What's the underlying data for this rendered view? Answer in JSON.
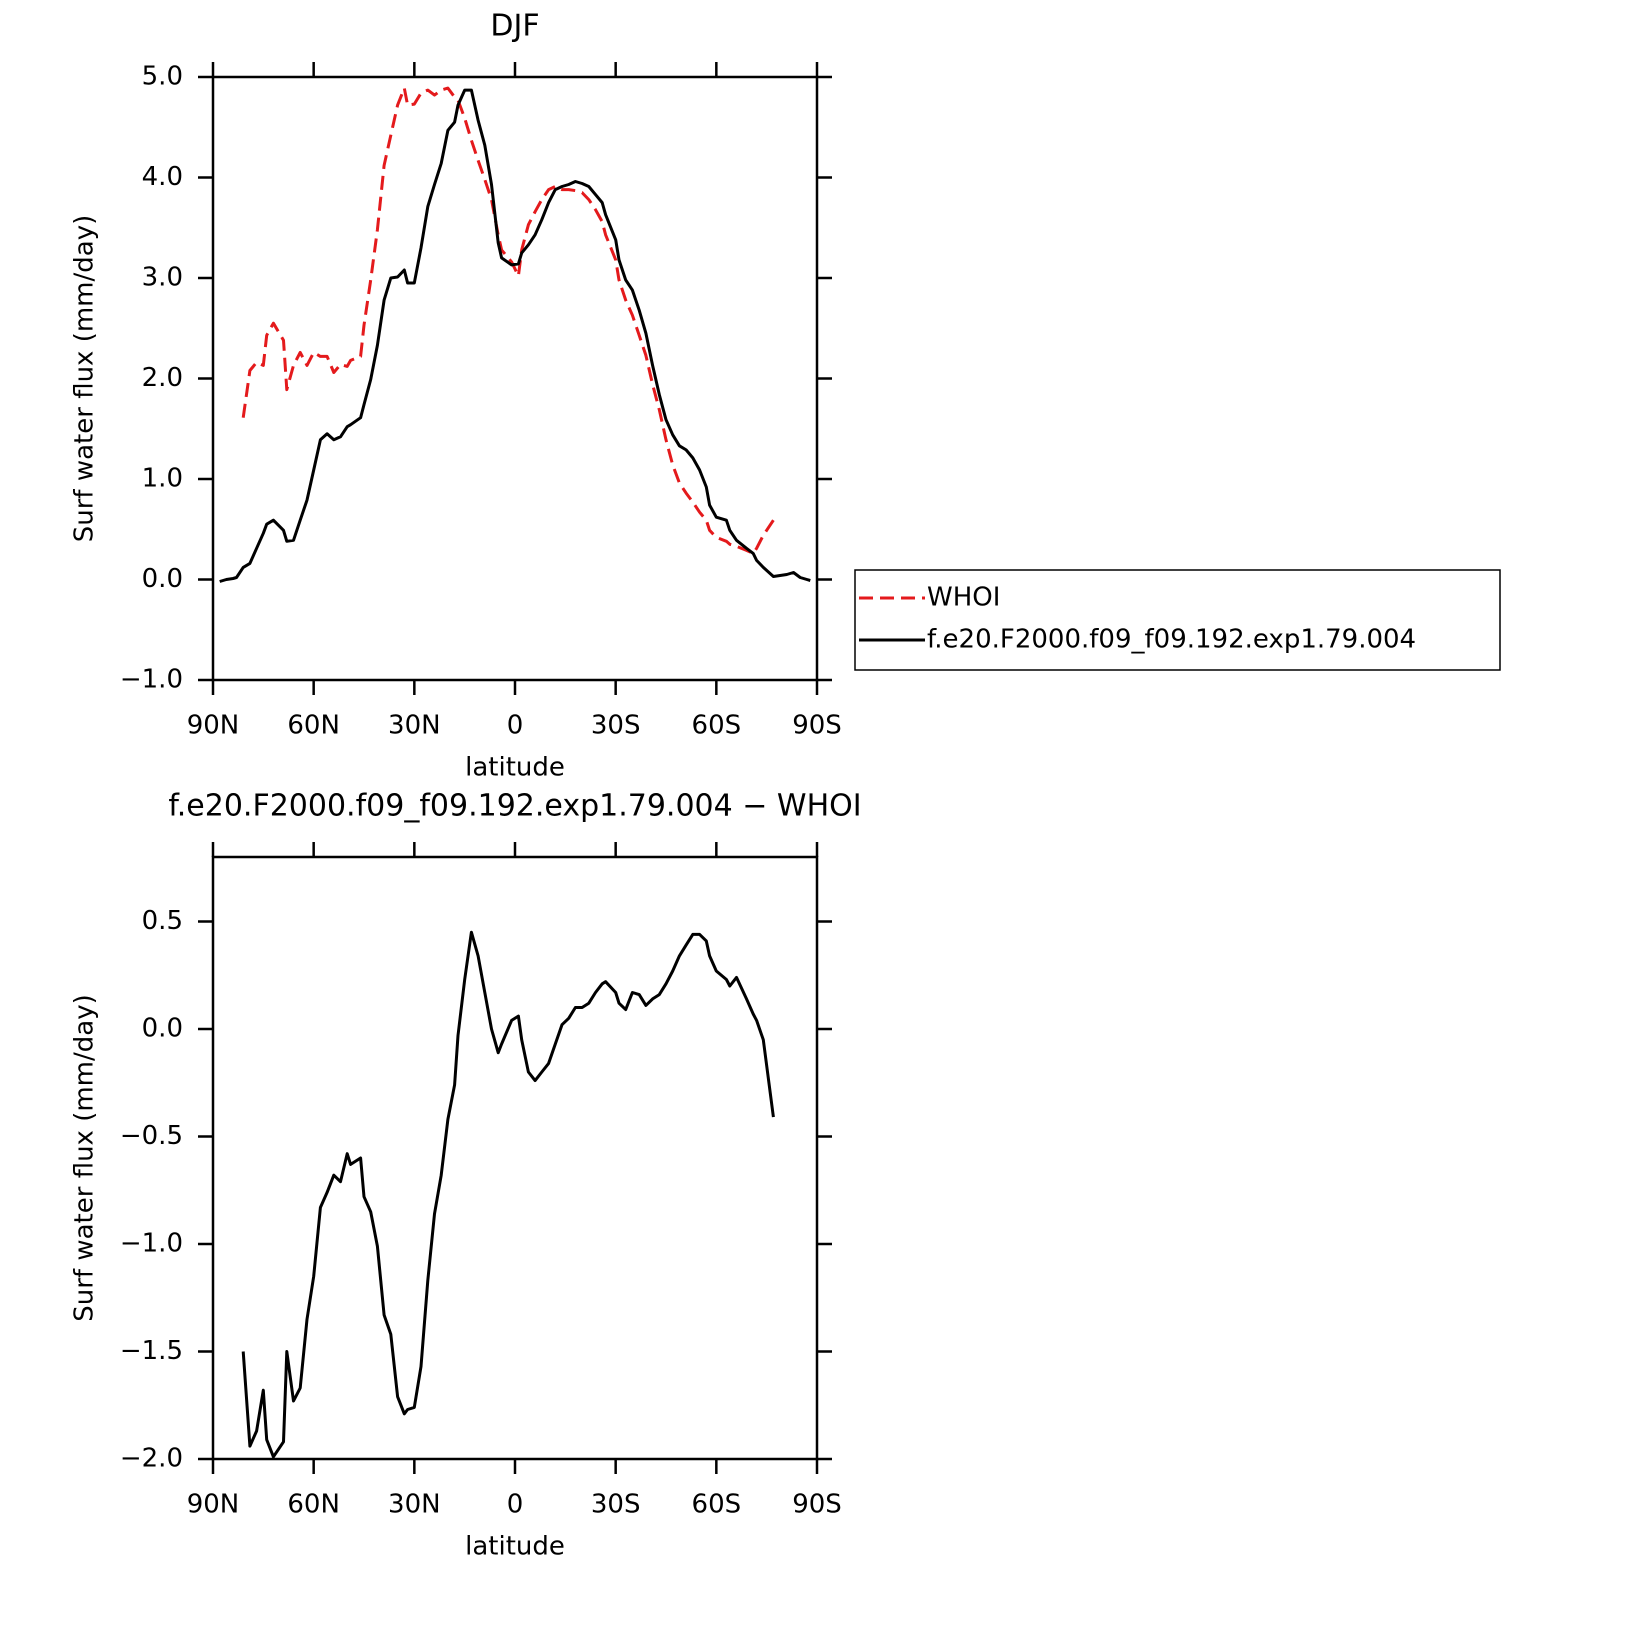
{
  "chart_data": [
    {
      "type": "line",
      "title": "DJF",
      "xlabel": "latitude",
      "ylabel": "Surf water flux (mm/day)",
      "xlim": [
        90,
        -90
      ],
      "ylim": [
        -1,
        5
      ],
      "xticks": [
        {
          "value": 90,
          "label": "90N"
        },
        {
          "value": 60,
          "label": "60N"
        },
        {
          "value": 30,
          "label": "30N"
        },
        0,
        {
          "value": -30,
          "label": "30S"
        },
        {
          "value": -60,
          "label": "60S"
        },
        {
          "value": -90,
          "label": "90S"
        }
      ],
      "yticks": [
        {
          "value": -1,
          "label": "−1.0"
        },
        {
          "value": 0,
          "label": "0.0"
        },
        {
          "value": 1,
          "label": "1.0"
        },
        {
          "value": 2,
          "label": "2.0"
        },
        {
          "value": 3,
          "label": "3.0"
        },
        {
          "value": 4,
          "label": "4.0"
        },
        {
          "value": 5,
          "label": "5.0"
        }
      ],
      "legend": "right",
      "series": [
        {
          "name": "WHOI",
          "color": "#e41a1c",
          "dash": true,
          "x": [
            81,
            79,
            77,
            75,
            74,
            72,
            69,
            68,
            66,
            64,
            62,
            60,
            58,
            56,
            54,
            52,
            50,
            49,
            46,
            45,
            43,
            41,
            39,
            37,
            35,
            33,
            32,
            30,
            28,
            26,
            24,
            22,
            20,
            18,
            17,
            15,
            13,
            11,
            9,
            7,
            5,
            4,
            1,
            -1,
            -2,
            -4,
            -6,
            -8,
            -10,
            -12,
            -14,
            -16,
            -18,
            -20,
            -22,
            -24,
            -26,
            -27,
            -30,
            -31,
            -33,
            -35,
            -37,
            -39,
            -41,
            -43,
            -45,
            -47,
            -49,
            -51,
            -53,
            -55,
            -57,
            -58,
            -60,
            -63,
            -64,
            -66,
            -69,
            -71,
            -72,
            -74,
            -77
          ],
          "values": [
            1.61,
            2.08,
            2.16,
            2.13,
            2.43,
            2.55,
            2.38,
            1.89,
            2.13,
            2.26,
            2.13,
            2.26,
            2.22,
            2.22,
            2.06,
            2.14,
            2.12,
            2.18,
            2.22,
            2.53,
            2.98,
            3.48,
            4.12,
            4.42,
            4.72,
            4.89,
            4.72,
            4.73,
            4.84,
            4.87,
            4.82,
            4.87,
            4.89,
            4.8,
            4.77,
            4.59,
            4.37,
            4.17,
            3.98,
            3.78,
            3.43,
            3.28,
            3.16,
            3.02,
            3.28,
            3.53,
            3.66,
            3.78,
            3.88,
            3.91,
            3.88,
            3.88,
            3.87,
            3.85,
            3.78,
            3.68,
            3.56,
            3.43,
            3.18,
            2.98,
            2.78,
            2.63,
            2.43,
            2.23,
            1.94,
            1.69,
            1.39,
            1.14,
            0.96,
            0.86,
            0.77,
            0.67,
            0.59,
            0.49,
            0.42,
            0.38,
            0.35,
            0.33,
            0.29,
            0.26,
            0.31,
            0.44,
            0.59
          ]
        },
        {
          "name": "f.e20.F2000.f09_f09.192.exp1.79.004",
          "color": "#000000",
          "dash": false,
          "x": [
            88,
            86,
            84,
            83,
            81,
            79,
            77,
            75,
            74,
            72,
            69,
            68,
            66,
            64,
            62,
            60,
            58,
            56,
            54,
            52,
            50,
            49,
            46,
            45,
            43,
            41,
            39,
            37,
            35,
            33,
            32,
            30,
            28,
            26,
            24,
            22,
            20,
            18,
            17,
            15,
            13,
            11,
            9,
            7,
            5,
            4,
            1,
            -1,
            -2,
            -4,
            -6,
            -8,
            -10,
            -12,
            -14,
            -16,
            -18,
            -20,
            -22,
            -24,
            -26,
            -27,
            -30,
            -31,
            -33,
            -35,
            -37,
            -39,
            -41,
            -43,
            -45,
            -47,
            -49,
            -51,
            -53,
            -55,
            -57,
            -58,
            -60,
            -63,
            -64,
            -66,
            -69,
            -71,
            -72,
            -74,
            -77,
            -79,
            -81,
            -83,
            -85,
            -87,
            -88
          ],
          "values": [
            -0.02,
            0.0,
            0.01,
            0.02,
            0.12,
            0.16,
            0.31,
            0.46,
            0.55,
            0.59,
            0.49,
            0.38,
            0.39,
            0.59,
            0.79,
            1.09,
            1.39,
            1.45,
            1.39,
            1.42,
            1.52,
            1.54,
            1.61,
            1.74,
            1.99,
            2.33,
            2.78,
            3.0,
            3.01,
            3.08,
            2.95,
            2.95,
            3.3,
            3.71,
            3.93,
            4.14,
            4.47,
            4.55,
            4.72,
            4.87,
            4.87,
            4.57,
            4.32,
            3.93,
            3.35,
            3.2,
            3.13,
            3.14,
            3.25,
            3.33,
            3.43,
            3.58,
            3.75,
            3.88,
            3.91,
            3.93,
            3.96,
            3.94,
            3.91,
            3.83,
            3.75,
            3.63,
            3.38,
            3.18,
            2.98,
            2.88,
            2.68,
            2.45,
            2.13,
            1.84,
            1.59,
            1.44,
            1.33,
            1.29,
            1.21,
            1.09,
            0.92,
            0.74,
            0.62,
            0.59,
            0.49,
            0.39,
            0.31,
            0.26,
            0.19,
            0.12,
            0.03,
            0.04,
            0.05,
            0.07,
            0.02,
            0.0,
            -0.01
          ]
        }
      ]
    },
    {
      "type": "line",
      "title": "f.e20.F2000.f09_f09.192.exp1.79.004 − WHOI",
      "xlabel": "latitude",
      "ylabel": "Surf water flux (mm/day)",
      "xlim": [
        90,
        -90
      ],
      "ylim": [
        -2,
        0.8
      ],
      "xticks": [
        {
          "value": 90,
          "label": "90N"
        },
        {
          "value": 60,
          "label": "60N"
        },
        {
          "value": 30,
          "label": "30N"
        },
        0,
        {
          "value": -30,
          "label": "30S"
        },
        {
          "value": -60,
          "label": "60S"
        },
        {
          "value": -90,
          "label": "90S"
        }
      ],
      "yticks": [
        {
          "value": -2,
          "label": "−2.0"
        },
        {
          "value": -1.5,
          "label": "−1.5"
        },
        {
          "value": -1,
          "label": "−1.0"
        },
        {
          "value": -0.5,
          "label": "−0.5"
        },
        {
          "value": 0,
          "label": "0.0"
        },
        {
          "value": 0.5,
          "label": "0.5"
        }
      ],
      "series": [
        {
          "color": "#000000",
          "dash": false,
          "x": [
            81,
            79,
            77,
            75,
            74,
            72,
            69,
            68,
            66,
            64,
            62,
            60,
            58,
            56,
            54,
            52,
            50,
            49,
            46,
            45,
            43,
            41,
            39,
            37,
            35,
            33,
            32,
            30,
            28,
            26,
            24,
            22,
            20,
            18,
            17,
            15,
            13,
            11,
            9,
            7,
            5,
            4,
            1,
            -1,
            -2,
            -4,
            -6,
            -8,
            -10,
            -12,
            -14,
            -16,
            -18,
            -20,
            -22,
            -24,
            -26,
            -27,
            -30,
            -31,
            -33,
            -35,
            -37,
            -39,
            -41,
            -43,
            -45,
            -47,
            -49,
            -51,
            -53,
            -55,
            -57,
            -58,
            -60,
            -63,
            -64,
            -66,
            -69,
            -71,
            -72,
            -74,
            -77
          ],
          "values": [
            -1.5,
            -1.94,
            -1.87,
            -1.68,
            -1.91,
            -1.99,
            -1.92,
            -1.5,
            -1.73,
            -1.67,
            -1.35,
            -1.15,
            -0.83,
            -0.76,
            -0.68,
            -0.71,
            -0.58,
            -0.63,
            -0.6,
            -0.78,
            -0.85,
            -1.01,
            -1.33,
            -1.42,
            -1.71,
            -1.79,
            -1.77,
            -1.76,
            -1.57,
            -1.17,
            -0.86,
            -0.68,
            -0.42,
            -0.26,
            -0.03,
            0.23,
            0.45,
            0.34,
            0.17,
            0.0,
            -0.11,
            -0.07,
            0.04,
            0.06,
            -0.05,
            -0.2,
            -0.24,
            -0.2,
            -0.16,
            -0.07,
            0.02,
            0.05,
            0.1,
            0.1,
            0.12,
            0.17,
            0.21,
            0.22,
            0.17,
            0.12,
            0.09,
            0.17,
            0.16,
            0.11,
            0.14,
            0.16,
            0.21,
            0.27,
            0.34,
            0.39,
            0.44,
            0.44,
            0.41,
            0.34,
            0.27,
            0.23,
            0.2,
            0.24,
            0.14,
            0.07,
            0.04,
            -0.05,
            -0.41
          ]
        }
      ]
    }
  ]
}
